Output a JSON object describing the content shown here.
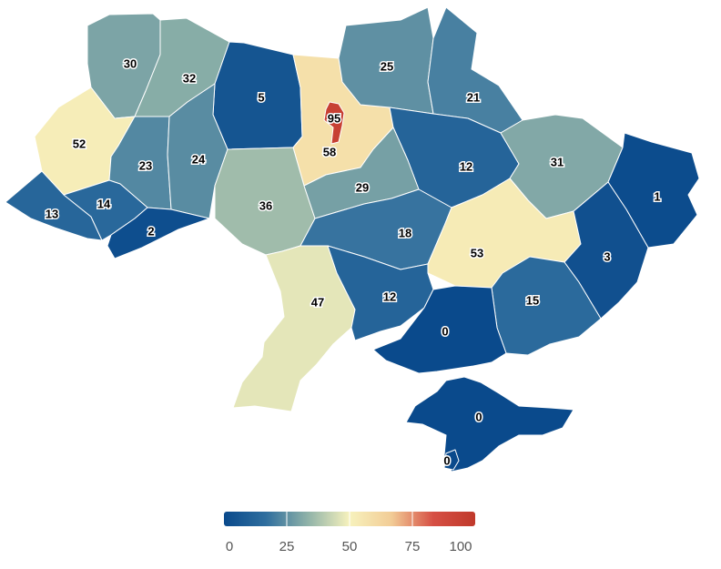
{
  "map": {
    "regions": [
      {
        "id": "volyn",
        "value": 30
      },
      {
        "id": "rivne",
        "value": 32
      },
      {
        "id": "zhytomyr",
        "value": 5
      },
      {
        "id": "kyiv-oblast",
        "value": 58
      },
      {
        "id": "kyiv-city",
        "value": 95
      },
      {
        "id": "chernihiv",
        "value": 25
      },
      {
        "id": "sumy",
        "value": 21
      },
      {
        "id": "lviv",
        "value": 52
      },
      {
        "id": "ternopil",
        "value": 23
      },
      {
        "id": "khmelnytskyi",
        "value": 24
      },
      {
        "id": "poltava",
        "value": 12
      },
      {
        "id": "kharkiv",
        "value": 31
      },
      {
        "id": "luhansk",
        "value": 1
      },
      {
        "id": "vinnytsia",
        "value": 36
      },
      {
        "id": "cherkasy",
        "value": 29
      },
      {
        "id": "zakarpattia",
        "value": 13
      },
      {
        "id": "ivano-frankivsk",
        "value": 14
      },
      {
        "id": "chernivtsi",
        "value": 2
      },
      {
        "id": "kirovohrad",
        "value": 18
      },
      {
        "id": "dnipropetrovsk",
        "value": 53
      },
      {
        "id": "donetsk",
        "value": 3
      },
      {
        "id": "odesa",
        "value": 47
      },
      {
        "id": "mykolaiv",
        "value": 12
      },
      {
        "id": "zaporizhzhia",
        "value": 15
      },
      {
        "id": "kherson",
        "value": 0
      },
      {
        "id": "crimea",
        "value": 0
      },
      {
        "id": "sevastopol",
        "value": 0
      }
    ]
  },
  "legend": {
    "ticks": [
      "0",
      "25",
      "50",
      "75",
      "100"
    ],
    "colors": [
      "#0a4a8c",
      "#2f6e9e",
      "#8fb2a8",
      "#f7f2bd",
      "#f2cc96",
      "#d64f44",
      "#c0392b"
    ]
  }
}
